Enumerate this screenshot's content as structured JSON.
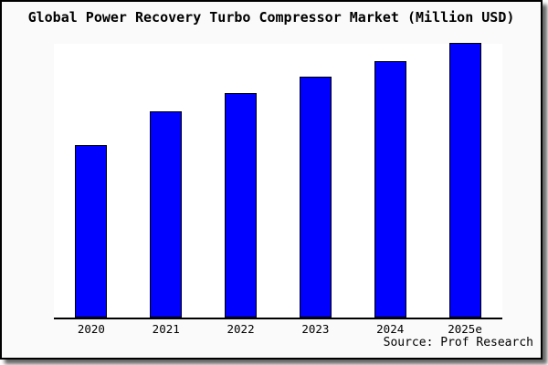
{
  "chart_data": {
    "type": "bar",
    "title": "Global Power Recovery Turbo Compressor Market (Million USD)",
    "categories": [
      "2020",
      "2021",
      "2022",
      "2023",
      "2024",
      "2025e"
    ],
    "values": [
      189,
      226,
      246,
      264,
      281,
      301
    ],
    "value_note": "no y-axis, gridlines or data labels shown; values are relative bar heights in screen pixels",
    "xlabel": "",
    "ylabel": "",
    "grid": false,
    "legend": null,
    "source": "Source: Prof Research",
    "colors": {
      "bar_fill": "#0000ff",
      "bar_border": "#000000",
      "plot_background": "#ffffff",
      "frame_background": "#fafafa",
      "frame_border": "#000000",
      "axis": "#000000",
      "text": "#000000"
    }
  }
}
